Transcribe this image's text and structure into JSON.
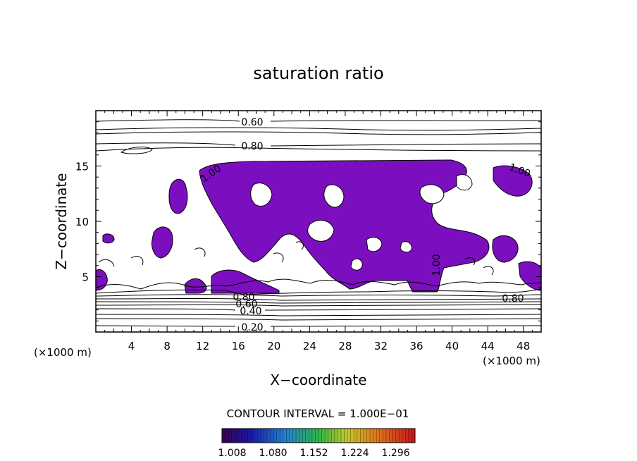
{
  "chart_data": {
    "type": "contour",
    "title": "saturation ratio",
    "xlabel": "X−coordinate",
    "ylabel": "Z−coordinate",
    "x_unit_left": "(×1000 m)",
    "x_unit_right": "(×1000 m)",
    "xlim": [
      0,
      50
    ],
    "ylim": [
      0,
      20
    ],
    "x_ticks": [
      4,
      8,
      12,
      16,
      20,
      24,
      28,
      32,
      36,
      40,
      44,
      48
    ],
    "y_ticks": [
      5,
      10,
      15
    ],
    "contour_labels": [
      "0.60",
      "0.80",
      "1.00",
      "1.00",
      "0.80",
      "0.80",
      "0.60",
      "0.40",
      "0.20",
      "1.00"
    ],
    "contour_levels": [
      0.2,
      0.4,
      0.6,
      0.8,
      1.0
    ],
    "contour_interval_text": "CONTOUR INTERVAL = 1.000E−01",
    "shaded_region_color": "#7b0fbf",
    "colorbar": {
      "tick_labels": [
        "1.008",
        "1.080",
        "1.152",
        "1.224",
        "1.296"
      ],
      "range": [
        0.99,
        1.33
      ]
    }
  }
}
